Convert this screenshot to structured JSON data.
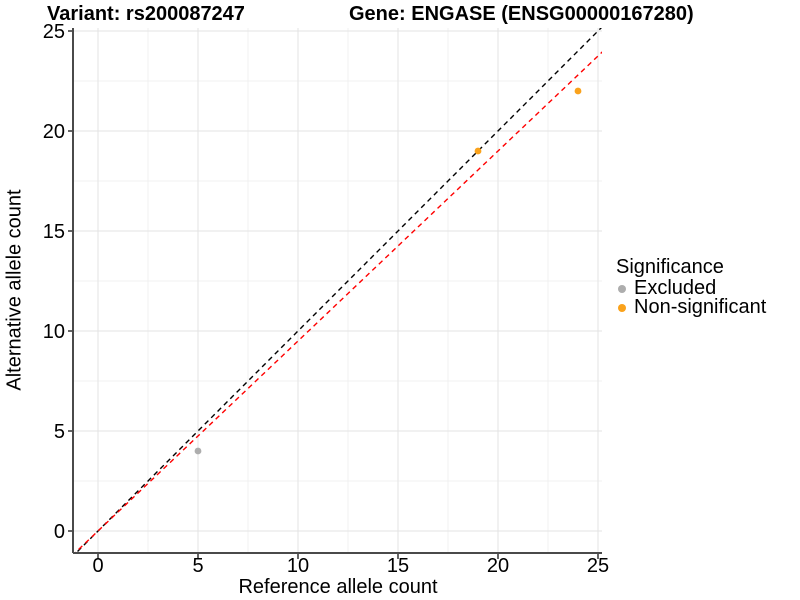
{
  "figure": {
    "title_variant": "Variant: rs200087247",
    "title_gene": "Gene: ENGASE (ENSG00000167280)"
  },
  "chart_data": {
    "type": "scatter",
    "xlabel": "Reference allele count",
    "ylabel": "Alternative allele count",
    "xlim": [
      -1.25,
      25.2
    ],
    "ylim": [
      -1.1,
      25.15
    ],
    "x_ticks": [
      0,
      5,
      10,
      15,
      20,
      25
    ],
    "y_ticks": [
      0,
      5,
      10,
      15,
      20,
      25
    ],
    "grid": {
      "major": true,
      "minor": true
    },
    "series": [
      {
        "name": "Excluded",
        "color": "#ADADAD",
        "points": [
          {
            "x": 5,
            "y": 4
          }
        ]
      },
      {
        "name": "Non-significant",
        "color": "#FAA21B",
        "points": [
          {
            "x": 19,
            "y": 19
          },
          {
            "x": 24,
            "y": 22
          }
        ]
      }
    ],
    "reference_lines": [
      {
        "name": "identity",
        "slope": 1.0,
        "intercept": 0,
        "color": "#000000",
        "style": "dashed"
      },
      {
        "name": "fit",
        "slope": 0.95,
        "intercept": 0,
        "color": "#FF0000",
        "style": "dashed"
      }
    ],
    "legend": {
      "title": "Significance",
      "position": "right",
      "items": [
        {
          "label": "Excluded",
          "color": "#ADADAD"
        },
        {
          "label": "Non-significant",
          "color": "#FAA21B"
        }
      ]
    }
  },
  "colors": {
    "background": "#FFFFFF",
    "grid_major": "#E3E3E3",
    "grid_minor": "#F1F1F1",
    "axis_line": "#4A4A4A",
    "tick_mark": "#333333",
    "tick_label": "#000000"
  }
}
